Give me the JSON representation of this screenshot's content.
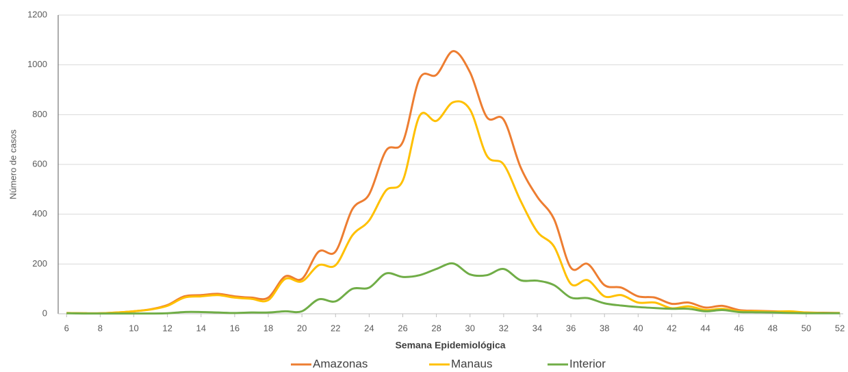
{
  "chart_data": {
    "type": "line",
    "x_label": "Semana Epidemiológica",
    "y_label": "Número de casos",
    "x": [
      6,
      7,
      8,
      9,
      10,
      11,
      12,
      13,
      14,
      15,
      16,
      17,
      18,
      19,
      20,
      21,
      22,
      23,
      24,
      25,
      26,
      27,
      28,
      29,
      30,
      31,
      32,
      33,
      34,
      35,
      36,
      37,
      38,
      39,
      40,
      41,
      42,
      43,
      44,
      45,
      46,
      47,
      48,
      49,
      50,
      51,
      52
    ],
    "series": [
      {
        "name": "Amazonas",
        "color": "#ed7d31",
        "values": [
          3,
          2,
          2,
          5,
          10,
          18,
          35,
          70,
          75,
          80,
          70,
          65,
          65,
          150,
          140,
          250,
          250,
          420,
          480,
          655,
          690,
          945,
          960,
          1055,
          970,
          790,
          780,
          590,
          470,
          380,
          185,
          200,
          115,
          105,
          70,
          65,
          40,
          45,
          25,
          32,
          15,
          12,
          10,
          8,
          5,
          4,
          3
        ]
      },
      {
        "name": "Manaus",
        "color": "#ffc000",
        "values": [
          3,
          2,
          2,
          5,
          10,
          17,
          32,
          65,
          70,
          75,
          65,
          60,
          55,
          140,
          130,
          195,
          195,
          315,
          375,
          495,
          535,
          795,
          775,
          850,
          820,
          635,
          600,
          455,
          330,
          270,
          120,
          135,
          70,
          75,
          45,
          45,
          22,
          30,
          15,
          20,
          10,
          10,
          8,
          10,
          5,
          3,
          3
        ]
      },
      {
        "name": "Interior",
        "color": "#70ad47",
        "values": [
          2,
          1,
          1,
          1,
          1,
          1,
          2,
          7,
          7,
          5,
          3,
          5,
          5,
          10,
          10,
          58,
          50,
          100,
          105,
          162,
          148,
          155,
          180,
          202,
          158,
          155,
          180,
          135,
          133,
          115,
          65,
          63,
          42,
          33,
          27,
          23,
          20,
          20,
          10,
          15,
          7,
          6,
          5,
          3,
          2,
          2,
          2
        ]
      }
    ],
    "xlim": [
      5.5,
      52.2
    ],
    "xticks": [
      6,
      8,
      10,
      12,
      14,
      16,
      18,
      20,
      22,
      24,
      26,
      28,
      30,
      32,
      34,
      36,
      38,
      40,
      42,
      44,
      46,
      48,
      50,
      52
    ],
    "ylim": [
      0,
      1200
    ],
    "yticks": [
      0,
      200,
      400,
      600,
      800,
      1000,
      1200
    ],
    "grid": true,
    "legend": "bottom"
  }
}
